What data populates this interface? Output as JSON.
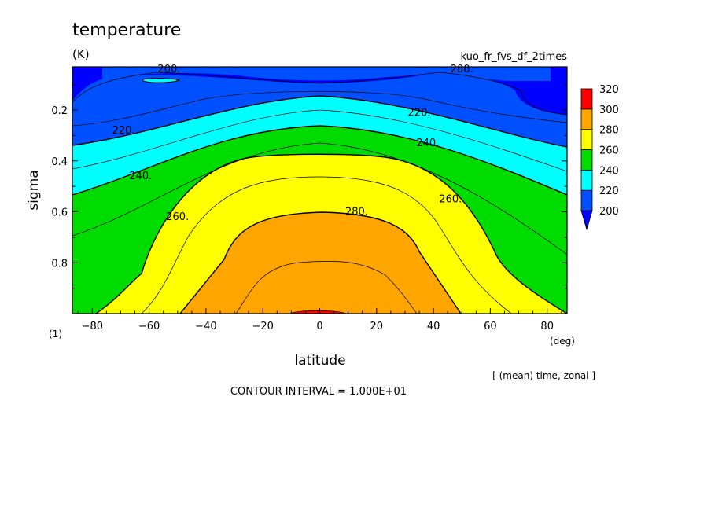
{
  "chart_data": {
    "type": "heatmap",
    "title": "temperature",
    "units": "(K)",
    "experiment": "kuo_fr_fvs_df_2times",
    "xlabel": "latitude",
    "x_unit": "(deg)",
    "ylabel": "sigma",
    "y_unit": "(1)",
    "xlim": [
      -87,
      87
    ],
    "ylim": [
      1.0,
      0.03
    ],
    "x_ticks": [
      -80,
      -60,
      -40,
      -20,
      0,
      20,
      40,
      60,
      80
    ],
    "x_tick_labels": [
      "−80",
      "−60",
      "−40",
      "−20",
      "0",
      "20",
      "40",
      "60",
      "80"
    ],
    "y_ticks": [
      0.2,
      0.4,
      0.6,
      0.8
    ],
    "y_tick_labels": [
      "0.2",
      "0.4",
      "0.6",
      "0.8"
    ],
    "contour_interval": 10,
    "contour_labels": [
      {
        "text": "200.",
        "lat": -53,
        "sigma": 0.04
      },
      {
        "text": "200.",
        "lat": 50,
        "sigma": 0.04
      },
      {
        "text": "220.",
        "lat": -69,
        "sigma": 0.28
      },
      {
        "text": "220.",
        "lat": 35,
        "sigma": 0.21
      },
      {
        "text": "240.",
        "lat": -63,
        "sigma": 0.46
      },
      {
        "text": "240.",
        "lat": 38,
        "sigma": 0.33
      },
      {
        "text": "260.",
        "lat": -50,
        "sigma": 0.62
      },
      {
        "text": "260.",
        "lat": 46,
        "sigma": 0.55
      },
      {
        "text": "280.",
        "lat": 13,
        "sigma": 0.6
      }
    ],
    "colorbar": {
      "levels": [
        200,
        220,
        240,
        260,
        280,
        300,
        320
      ],
      "level_labels": [
        "200",
        "220",
        "240",
        "260",
        "280",
        "300",
        "320"
      ],
      "colors": [
        "#0050ff",
        "#00ffff",
        "#00dc00",
        "#ffff00",
        "#ffa500",
        "#ff0000"
      ],
      "under_color": "#0000ff"
    },
    "fill_colors": {
      "below_200": "#0000ff",
      "200_220": "#0050ff",
      "220_240": "#00ffff",
      "240_260": "#00dc00",
      "260_280": "#ffff00",
      "280_300": "#ffa500",
      "300_320": "#ff0000"
    }
  },
  "footer": {
    "mean_note": "[ (mean) time, zonal ]",
    "contour_interval_text": "CONTOUR INTERVAL = 1.000E+01"
  }
}
